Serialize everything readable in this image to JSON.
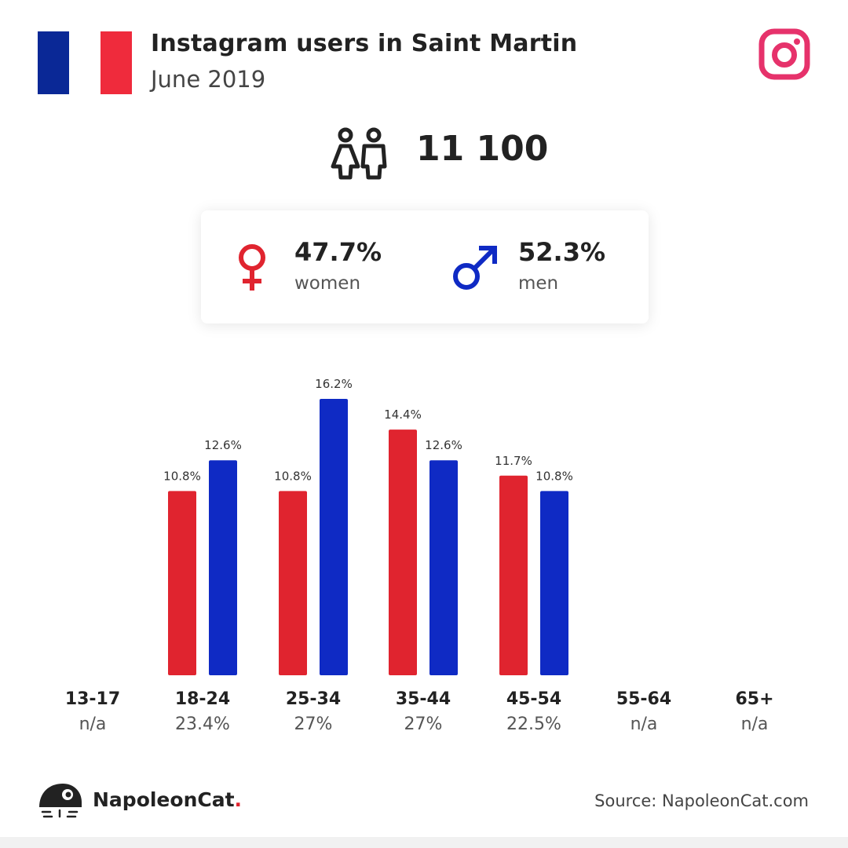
{
  "header": {
    "title": "Instagram users in Saint Martin",
    "subtitle": "June 2019"
  },
  "colors": {
    "flag_blue": "#0a2896",
    "flag_red": "#ef2b3c",
    "women": "#e0242f",
    "men": "#0f2ac4",
    "instagram": "#e6326b"
  },
  "icons": {
    "flag": "france-flag-icon",
    "platform": "instagram-icon",
    "people": "people-icon",
    "women": "female-symbol-icon",
    "men": "male-symbol-icon",
    "brand": "napoleoncat-logo-icon"
  },
  "total_users": "11 100",
  "gender": {
    "women": {
      "value": "47.7%",
      "label": "women"
    },
    "men": {
      "value": "52.3%",
      "label": "men"
    }
  },
  "chart_data": {
    "type": "bar",
    "categories": [
      "13-17",
      "18-24",
      "25-34",
      "35-44",
      "45-54",
      "55-64",
      "65+"
    ],
    "category_totals": [
      "n/a",
      "23.4%",
      "27%",
      "27%",
      "22.5%",
      "n/a",
      "n/a"
    ],
    "series": [
      {
        "name": "women",
        "values": [
          null,
          10.8,
          10.8,
          14.4,
          11.7,
          null,
          null
        ],
        "labels": [
          "",
          "10.8%",
          "10.8%",
          "14.4%",
          "11.7%",
          "",
          ""
        ]
      },
      {
        "name": "men",
        "values": [
          null,
          12.6,
          16.2,
          12.6,
          10.8,
          null,
          null
        ],
        "labels": [
          "",
          "12.6%",
          "16.2%",
          "12.6%",
          "10.8%",
          "",
          ""
        ]
      }
    ],
    "ylim": [
      0,
      16.2
    ]
  },
  "footer": {
    "brand_name": "NapoleonCat",
    "brand_dot": ".",
    "source": "Source: NapoleonCat.com"
  }
}
